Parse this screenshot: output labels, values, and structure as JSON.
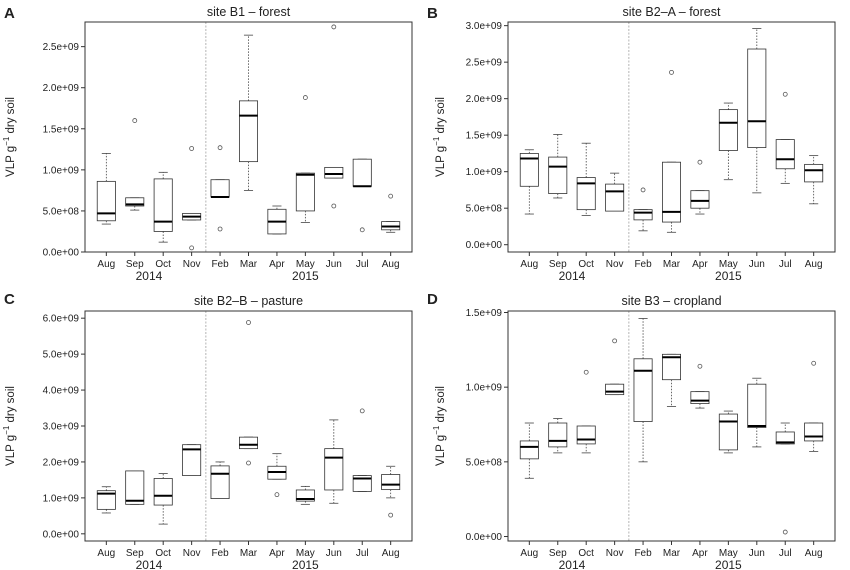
{
  "figure": {
    "ylabel_main": "VLP g",
    "ylabel_sup": "−1",
    "ylabel_rest": " dry soil"
  },
  "chart_data": [
    {
      "type": "box",
      "letter": "A",
      "title": "site B1 – forest",
      "ylim": [
        0,
        2800000000
      ],
      "yticks": [
        0,
        500000000,
        1000000000,
        1500000000,
        2000000000,
        2500000000
      ],
      "ytick_labels": [
        "0.0e+00",
        "5.0e+08",
        "1.0e+09",
        "1.5e+09",
        "2.0e+09",
        "2.5e+09"
      ],
      "categories": [
        "Aug",
        "Sep",
        "Oct",
        "Nov",
        "Feb",
        "Mar",
        "Apr",
        "May",
        "Jun",
        "Jul",
        "Aug"
      ],
      "year_labels": [
        {
          "label": "2014",
          "span": [
            0,
            3
          ]
        },
        {
          "label": "2015",
          "span": [
            4,
            10
          ]
        }
      ],
      "divider_after_index": 3,
      "boxes": [
        {
          "q1": 380000000,
          "median": 470000000,
          "q3": 860000000,
          "wlo": 340000000,
          "whi": 1200000000,
          "outliers": []
        },
        {
          "q1": 560000000,
          "median": 580000000,
          "q3": 660000000,
          "wlo": 510000000,
          "whi": 660000000,
          "outliers": [
            1600000000
          ]
        },
        {
          "q1": 250000000,
          "median": 370000000,
          "q3": 890000000,
          "wlo": 120000000,
          "whi": 970000000,
          "outliers": []
        },
        {
          "q1": 390000000,
          "median": 430000000,
          "q3": 470000000,
          "wlo": 390000000,
          "whi": 470000000,
          "outliers": [
            1260000000,
            50000000
          ]
        },
        {
          "q1": 670000000,
          "median": 670000000,
          "q3": 880000000,
          "wlo": 670000000,
          "whi": 880000000,
          "outliers": [
            1270000000,
            280000000
          ]
        },
        {
          "q1": 1100000000,
          "median": 1660000000,
          "q3": 1840000000,
          "wlo": 750000000,
          "whi": 2640000000,
          "outliers": []
        },
        {
          "q1": 220000000,
          "median": 370000000,
          "q3": 520000000,
          "wlo": 220000000,
          "whi": 560000000,
          "outliers": []
        },
        {
          "q1": 500000000,
          "median": 940000000,
          "q3": 960000000,
          "wlo": 360000000,
          "whi": 960000000,
          "outliers": [
            1880000000
          ]
        },
        {
          "q1": 900000000,
          "median": 950000000,
          "q3": 1030000000,
          "wlo": 900000000,
          "whi": 1030000000,
          "outliers": [
            2740000000,
            560000000
          ]
        },
        {
          "q1": 800000000,
          "median": 800000000,
          "q3": 1130000000,
          "wlo": 800000000,
          "whi": 1130000000,
          "outliers": [
            270000000
          ]
        },
        {
          "q1": 270000000,
          "median": 310000000,
          "q3": 370000000,
          "wlo": 240000000,
          "whi": 370000000,
          "outliers": [
            680000000
          ]
        }
      ]
    },
    {
      "type": "box",
      "letter": "B",
      "title": "site B2–A – forest",
      "ylim": [
        -100000000,
        3050000000
      ],
      "yticks": [
        0,
        500000000,
        1000000000,
        1500000000,
        2000000000,
        2500000000,
        3000000000
      ],
      "ytick_labels": [
        "0.0e+00",
        "5.0e+08",
        "1.0e+09",
        "1.5e+09",
        "2.0e+09",
        "2.5e+09",
        "3.0e+09"
      ],
      "categories": [
        "Aug",
        "Sep",
        "Oct",
        "Nov",
        "Feb",
        "Mar",
        "Apr",
        "May",
        "Jun",
        "Jul",
        "Aug"
      ],
      "year_labels": [
        {
          "label": "2014",
          "span": [
            0,
            3
          ]
        },
        {
          "label": "2015",
          "span": [
            4,
            10
          ]
        }
      ],
      "divider_after_index": 3,
      "boxes": [
        {
          "q1": 800000000,
          "median": 1180000000,
          "q3": 1250000000,
          "wlo": 420000000,
          "whi": 1300000000,
          "outliers": []
        },
        {
          "q1": 700000000,
          "median": 1070000000,
          "q3": 1200000000,
          "wlo": 640000000,
          "whi": 1510000000,
          "outliers": []
        },
        {
          "q1": 480000000,
          "median": 840000000,
          "q3": 920000000,
          "wlo": 400000000,
          "whi": 1390000000,
          "outliers": []
        },
        {
          "q1": 460000000,
          "median": 730000000,
          "q3": 830000000,
          "wlo": 460000000,
          "whi": 980000000,
          "outliers": []
        },
        {
          "q1": 340000000,
          "median": 440000000,
          "q3": 480000000,
          "wlo": 190000000,
          "whi": 480000000,
          "outliers": [
            750000000
          ]
        },
        {
          "q1": 310000000,
          "median": 450000000,
          "q3": 1130000000,
          "wlo": 170000000,
          "whi": 1130000000,
          "outliers": [
            2360000000
          ]
        },
        {
          "q1": 500000000,
          "median": 600000000,
          "q3": 740000000,
          "wlo": 420000000,
          "whi": 740000000,
          "outliers": [
            1130000000
          ]
        },
        {
          "q1": 1290000000,
          "median": 1670000000,
          "q3": 1850000000,
          "wlo": 890000000,
          "whi": 1940000000,
          "outliers": []
        },
        {
          "q1": 1330000000,
          "median": 1690000000,
          "q3": 2680000000,
          "wlo": 710000000,
          "whi": 2960000000,
          "outliers": []
        },
        {
          "q1": 1040000000,
          "median": 1170000000,
          "q3": 1440000000,
          "wlo": 840000000,
          "whi": 1440000000,
          "outliers": [
            2060000000
          ]
        },
        {
          "q1": 860000000,
          "median": 1020000000,
          "q3": 1100000000,
          "wlo": 560000000,
          "whi": 1220000000,
          "outliers": []
        }
      ]
    },
    {
      "type": "box",
      "letter": "C",
      "title": "site B2–B – pasture",
      "ylim": [
        -200000000,
        6200000000
      ],
      "yticks": [
        0,
        1000000000,
        2000000000,
        3000000000,
        4000000000,
        5000000000,
        6000000000
      ],
      "ytick_labels": [
        "0.0e+00",
        "1.0e+09",
        "2.0e+09",
        "3.0e+09",
        "4.0e+09",
        "5.0e+09",
        "6.0e+09"
      ],
      "categories": [
        "Aug",
        "Sep",
        "Oct",
        "Nov",
        "Feb",
        "Mar",
        "Apr",
        "May",
        "Jun",
        "Jul",
        "Aug"
      ],
      "year_labels": [
        {
          "label": "2014",
          "span": [
            0,
            3
          ]
        },
        {
          "label": "2015",
          "span": [
            4,
            10
          ]
        }
      ],
      "divider_after_index": 3,
      "boxes": [
        {
          "q1": 680000000,
          "median": 1120000000,
          "q3": 1200000000,
          "wlo": 580000000,
          "whi": 1310000000,
          "outliers": []
        },
        {
          "q1": 820000000,
          "median": 920000000,
          "q3": 1750000000,
          "wlo": 820000000,
          "whi": 1750000000,
          "outliers": []
        },
        {
          "q1": 800000000,
          "median": 1060000000,
          "q3": 1540000000,
          "wlo": 270000000,
          "whi": 1680000000,
          "outliers": []
        },
        {
          "q1": 1620000000,
          "median": 2350000000,
          "q3": 2480000000,
          "wlo": 1620000000,
          "whi": 2480000000,
          "outliers": []
        },
        {
          "q1": 980000000,
          "median": 1670000000,
          "q3": 1890000000,
          "wlo": 980000000,
          "whi": 2000000000,
          "outliers": []
        },
        {
          "q1": 2370000000,
          "median": 2480000000,
          "q3": 2690000000,
          "wlo": 2370000000,
          "whi": 2690000000,
          "outliers": [
            5880000000,
            1970000000
          ]
        },
        {
          "q1": 1520000000,
          "median": 1720000000,
          "q3": 1880000000,
          "wlo": 1520000000,
          "whi": 2230000000,
          "outliers": [
            1090000000
          ]
        },
        {
          "q1": 910000000,
          "median": 970000000,
          "q3": 1220000000,
          "wlo": 820000000,
          "whi": 1320000000,
          "outliers": []
        },
        {
          "q1": 1220000000,
          "median": 2120000000,
          "q3": 2370000000,
          "wlo": 850000000,
          "whi": 3170000000,
          "outliers": []
        },
        {
          "q1": 1180000000,
          "median": 1540000000,
          "q3": 1620000000,
          "wlo": 1180000000,
          "whi": 1620000000,
          "outliers": [
            3420000000
          ]
        },
        {
          "q1": 1230000000,
          "median": 1370000000,
          "q3": 1650000000,
          "wlo": 1000000000,
          "whi": 1880000000,
          "outliers": [
            520000000
          ]
        }
      ]
    },
    {
      "type": "box",
      "letter": "D",
      "title": "site B3 – cropland",
      "ylim": [
        -30000000,
        1510000000
      ],
      "yticks": [
        0,
        500000000,
        1000000000,
        1500000000
      ],
      "ytick_labels": [
        "0.0e+00",
        "5.0e+08",
        "1.0e+09",
        "1.5e+09"
      ],
      "categories": [
        "Aug",
        "Sep",
        "Oct",
        "Nov",
        "Feb",
        "Mar",
        "Apr",
        "May",
        "Jun",
        "Jul",
        "Aug"
      ],
      "year_labels": [
        {
          "label": "2014",
          "span": [
            0,
            3
          ]
        },
        {
          "label": "2015",
          "span": [
            4,
            10
          ]
        }
      ],
      "divider_after_index": 3,
      "boxes": [
        {
          "q1": 520000000,
          "median": 600000000,
          "q3": 640000000,
          "wlo": 390000000,
          "whi": 760000000,
          "outliers": []
        },
        {
          "q1": 600000000,
          "median": 640000000,
          "q3": 760000000,
          "wlo": 560000000,
          "whi": 790000000,
          "outliers": []
        },
        {
          "q1": 620000000,
          "median": 650000000,
          "q3": 740000000,
          "wlo": 560000000,
          "whi": 740000000,
          "outliers": [
            1100000000
          ]
        },
        {
          "q1": 950000000,
          "median": 970000000,
          "q3": 1020000000,
          "wlo": 950000000,
          "whi": 1020000000,
          "outliers": [
            1310000000
          ]
        },
        {
          "q1": 770000000,
          "median": 1110000000,
          "q3": 1190000000,
          "wlo": 500000000,
          "whi": 1460000000,
          "outliers": []
        },
        {
          "q1": 1050000000,
          "median": 1200000000,
          "q3": 1220000000,
          "wlo": 870000000,
          "whi": 1220000000,
          "outliers": []
        },
        {
          "q1": 890000000,
          "median": 910000000,
          "q3": 970000000,
          "wlo": 860000000,
          "whi": 970000000,
          "outliers": [
            1140000000
          ]
        },
        {
          "q1": 580000000,
          "median": 770000000,
          "q3": 820000000,
          "wlo": 560000000,
          "whi": 840000000,
          "outliers": []
        },
        {
          "q1": 730000000,
          "median": 740000000,
          "q3": 1020000000,
          "wlo": 600000000,
          "whi": 1060000000,
          "outliers": []
        },
        {
          "q1": 620000000,
          "median": 630000000,
          "q3": 700000000,
          "wlo": 620000000,
          "whi": 760000000,
          "outliers": [
            30000000
          ]
        },
        {
          "q1": 640000000,
          "median": 670000000,
          "q3": 760000000,
          "wlo": 570000000,
          "whi": 760000000,
          "outliers": [
            1160000000
          ]
        }
      ]
    }
  ]
}
